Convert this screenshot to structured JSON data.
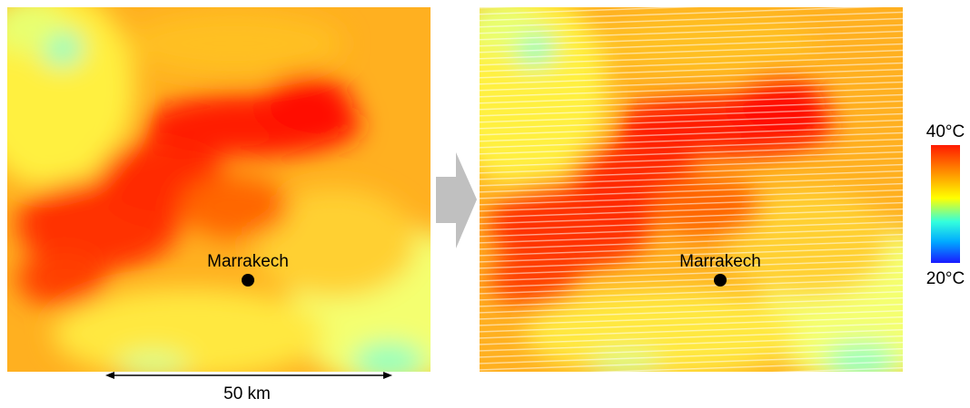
{
  "panels": [
    {
      "place_label": "Marrakech"
    },
    {
      "place_label": "Marrakech"
    }
  ],
  "scale_bar": {
    "label": "50 km"
  },
  "colorbar": {
    "max_label": "40°C",
    "min_label": "20°C"
  }
}
